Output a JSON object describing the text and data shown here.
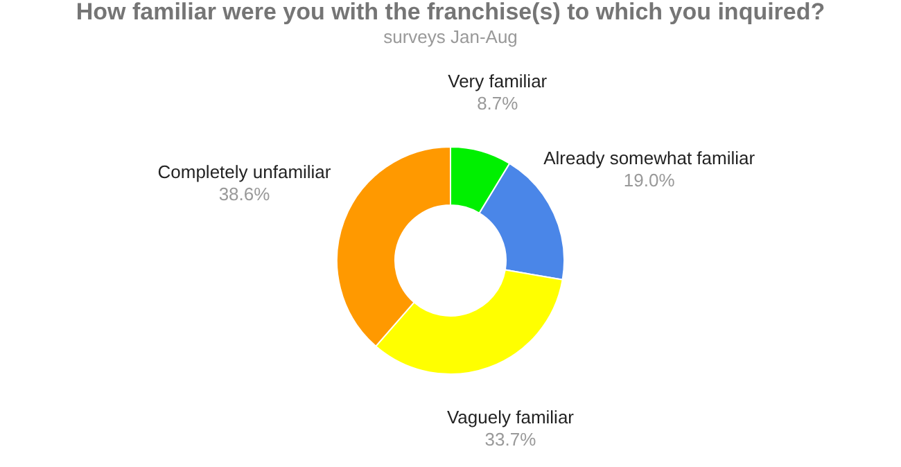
{
  "chart_data": {
    "type": "donut",
    "title": "How familiar were you with the franchise(s) to which you inquired?",
    "subtitle": "surveys Jan-Aug",
    "categories": [
      "Very familiar",
      "Already somewhat familiar",
      "Vaguely familiar",
      "Completely unfamiliar"
    ],
    "values": [
      8.7,
      19.0,
      33.7,
      38.6
    ],
    "value_labels": [
      "8.7%",
      "19.0%",
      "33.7%",
      "38.6%"
    ],
    "colors": [
      "#00f000",
      "#4a86e8",
      "#ffff00",
      "#ff9900"
    ]
  }
}
